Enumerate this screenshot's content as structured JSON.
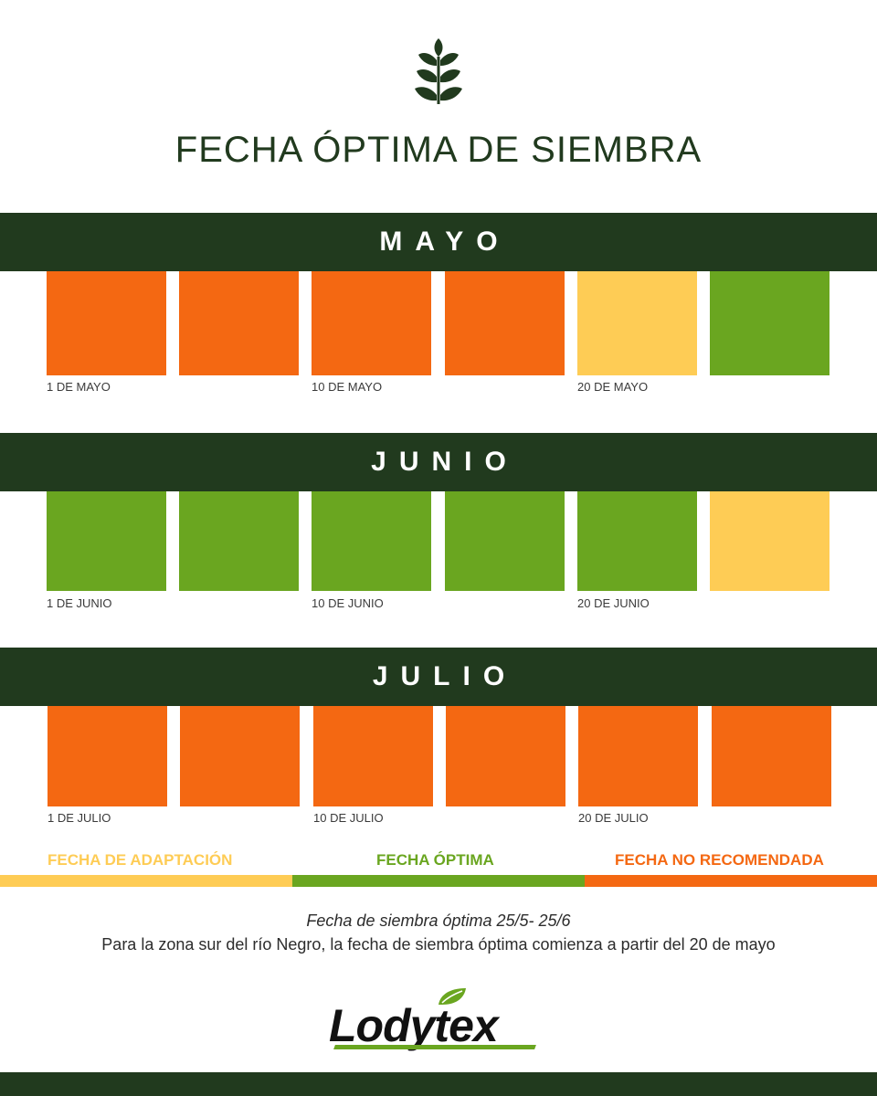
{
  "title": "FECHA ÓPTIMA DE SIEMBRA",
  "colors": {
    "dark": "#213a1e",
    "orange": "#f46812",
    "yellow": "#fecc55",
    "green": "#6aa620"
  },
  "months": [
    {
      "name": "MAYO",
      "cells": [
        "orange",
        "orange",
        "orange",
        "orange",
        "yellow",
        "green"
      ],
      "ticks": [
        "1 DE MAYO",
        "10 DE MAYO",
        "20 DE MAYO"
      ]
    },
    {
      "name": "JUNIO",
      "cells": [
        "green",
        "green",
        "green",
        "green",
        "green",
        "yellow"
      ],
      "ticks": [
        "1 DE JUNIO",
        "10 DE JUNIO",
        "20 DE JUNIO"
      ]
    },
    {
      "name": "JULIO",
      "cells": [
        "orange",
        "orange",
        "orange",
        "orange",
        "orange",
        "orange"
      ],
      "ticks": [
        "1 DE JULIO",
        "10 DE JULIO",
        "20 DE JULIO"
      ]
    }
  ],
  "legend": {
    "adaptacion": "FECHA DE ADAPTACIÓN",
    "optima": "FECHA ÓPTIMA",
    "no_recomendada": "FECHA NO RECOMENDADA"
  },
  "note_italic": "Fecha de siembra óptima 25/5- 25/6",
  "note_text": "Para la zona sur del río Negro, la fecha de siembra óptima comienza a partir del 20 de mayo",
  "brand": "Lodytex",
  "icons": {
    "top": "wheat-icon",
    "brand": "leaf-icon"
  }
}
